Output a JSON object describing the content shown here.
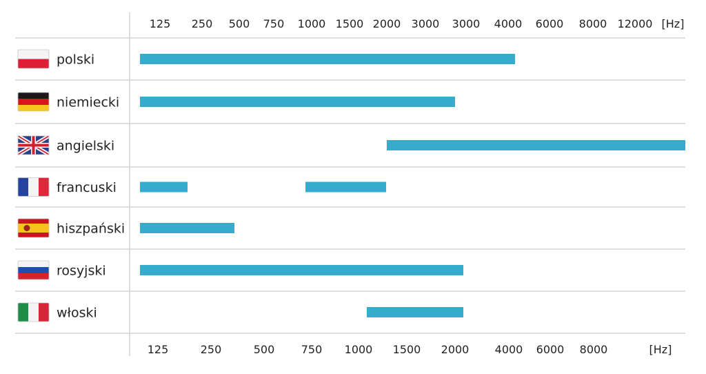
{
  "chart_data": {
    "type": "bar",
    "orientation": "horizontal-ranges",
    "top_ticks": [
      "125",
      "250",
      "500",
      "750",
      "1000",
      "1500",
      "2000",
      "3000",
      "3000",
      "4000",
      "6000",
      "8000",
      "12000",
      "[Hz]"
    ],
    "bottom_ticks": [
      "125",
      "250",
      "500",
      "750",
      "1000",
      "1500",
      "2000",
      "4000",
      "6000",
      "8000",
      "[Hz]"
    ],
    "bar_color": "#37abcb",
    "grid_color": "#d4d4d4",
    "series": [
      {
        "label": "polski",
        "flag": "flag-poland",
        "ranges": [
          [
            80,
            4500
          ]
        ]
      },
      {
        "label": "niemiecki",
        "flag": "flag-germany",
        "ranges": [
          [
            80,
            2000
          ]
        ]
      },
      {
        "label": "angielski",
        "flag": "flag-uk",
        "ranges": [
          [
            1500,
            12000
          ]
        ]
      },
      {
        "label": "francuski",
        "flag": "flag-france",
        "ranges": [
          [
            80,
            180
          ],
          [
            700,
            1450
          ]
        ]
      },
      {
        "label": "hiszpański",
        "flag": "flag-spain",
        "ranges": [
          [
            80,
            330
          ]
        ]
      },
      {
        "label": "rosyjski",
        "flag": "flag-russia",
        "ranges": [
          [
            80,
            2200
          ]
        ]
      },
      {
        "label": "włoski",
        "flag": "flag-italy",
        "ranges": [
          [
            1100,
            2200
          ]
        ]
      }
    ]
  }
}
